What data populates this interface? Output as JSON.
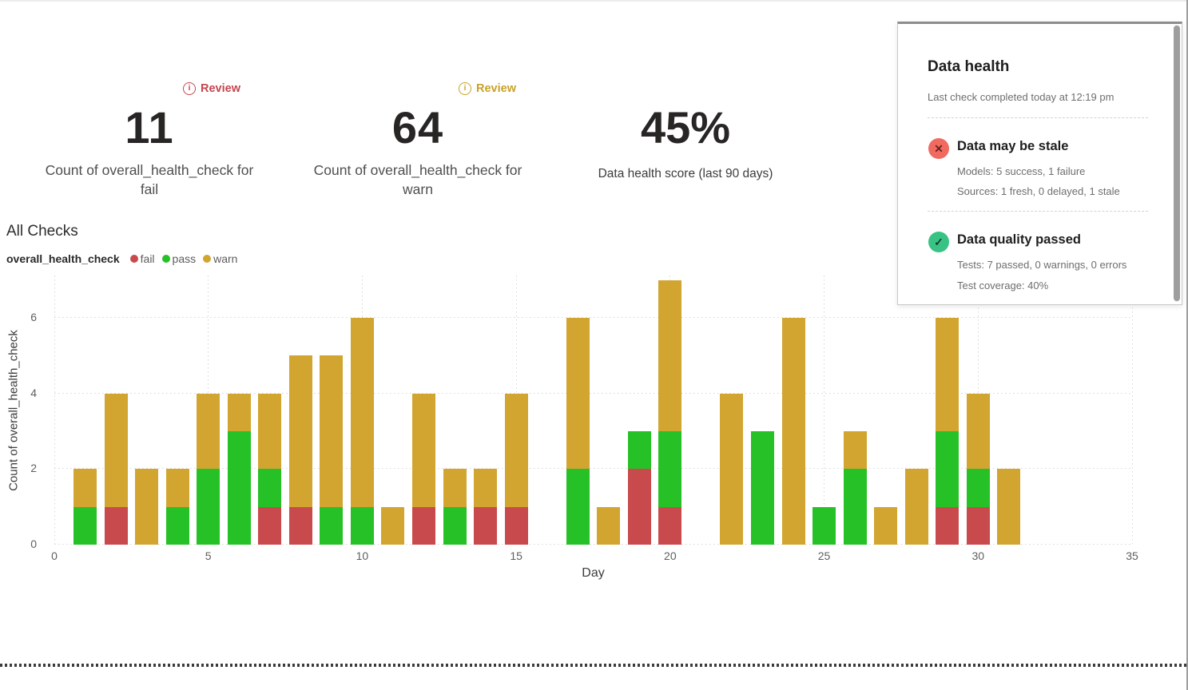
{
  "kpi_cards": [
    {
      "badge_label": "Review",
      "badge_icon": "i",
      "badge_color": "#C5454E",
      "value": "11",
      "label": "Count of overall_health_check for fail"
    },
    {
      "badge_label": "Review",
      "badge_icon": "i",
      "badge_color": "#C9A227",
      "value": "64",
      "label": "Count of overall_health_check for warn"
    },
    {
      "value": "45%",
      "label": "Data health score (last 90 days)"
    }
  ],
  "all_checks": {
    "title": "All Checks",
    "legend_title": "overall_health_check",
    "legend_items": [
      {
        "label": "fail",
        "color": "#C94A4C"
      },
      {
        "label": "pass",
        "color": "#26C126"
      },
      {
        "label": "warn",
        "color": "#D1A52F"
      }
    ]
  },
  "chart_data": {
    "type": "bar",
    "stacked": true,
    "title": "All Checks",
    "xlabel": "Day",
    "ylabel": "Count of overall_health_check",
    "xlim": [
      0,
      35
    ],
    "ylim": [
      0,
      7.12
    ],
    "x_ticks": [
      0,
      5,
      10,
      15,
      20,
      25,
      30,
      35
    ],
    "y_ticks": [
      0,
      2,
      4,
      6
    ],
    "grid": "dotted",
    "legend_position": "top-left",
    "x": [
      1,
      2,
      3,
      4,
      5,
      6,
      7,
      8,
      9,
      10,
      11,
      12,
      13,
      14,
      15,
      16,
      17,
      18,
      19,
      20,
      21,
      22,
      23,
      24,
      25,
      26,
      27,
      28,
      29,
      30,
      31
    ],
    "series": [
      {
        "name": "fail",
        "color": "#C94A4C",
        "values": [
          0,
          1,
          0,
          0,
          0,
          0,
          1,
          1,
          0,
          0,
          0,
          1,
          0,
          1,
          1,
          0,
          0,
          0,
          2,
          1,
          0,
          0,
          0,
          0,
          0,
          0,
          0,
          0,
          1,
          1,
          0
        ]
      },
      {
        "name": "pass",
        "color": "#26C126",
        "values": [
          1,
          0,
          0,
          1,
          2,
          3,
          1,
          0,
          1,
          1,
          0,
          0,
          1,
          0,
          0,
          0,
          2,
          0,
          1,
          2,
          0,
          0,
          3,
          0,
          1,
          2,
          0,
          0,
          2,
          1,
          0
        ]
      },
      {
        "name": "warn",
        "color": "#D1A52F",
        "values": [
          1,
          3,
          2,
          1,
          2,
          1,
          2,
          4,
          4,
          5,
          1,
          3,
          1,
          1,
          3,
          0,
          4,
          1,
          0,
          4,
          0,
          4,
          0,
          6,
          0,
          1,
          1,
          2,
          3,
          2,
          2
        ]
      }
    ]
  },
  "data_health_panel": {
    "title": "Data health",
    "subtitle": "Last check completed today at 12:19 pm",
    "items": [
      {
        "icon_glyph": "✕",
        "icon_bg": "#F16A60",
        "title": "Data may be stale",
        "lines": [
          "Models: 5 success, 1 failure",
          "Sources: 1 fresh, 0 delayed, 1 stale"
        ]
      },
      {
        "icon_glyph": "✓",
        "icon_bg": "#38C385",
        "title": "Data quality passed",
        "lines": [
          "Tests: 7 passed, 0 warnings, 0 errors",
          "Test coverage: 40%"
        ]
      }
    ]
  }
}
